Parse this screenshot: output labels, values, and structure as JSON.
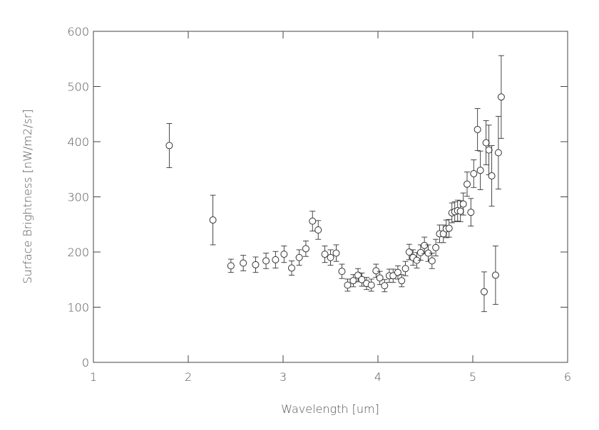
{
  "chart_data": {
    "type": "scatter",
    "xlabel": "Wavelength [um]",
    "ylabel": "Surface Brightness [nW/m2/sr]",
    "xlim": [
      1,
      6
    ],
    "ylim": [
      0,
      600
    ],
    "xticks": [
      1,
      2,
      3,
      4,
      5,
      6
    ],
    "yticks": [
      0,
      100,
      200,
      300,
      400,
      500,
      600
    ],
    "color": "#333333",
    "x": [
      1.8,
      2.26,
      2.45,
      2.58,
      2.71,
      2.82,
      2.92,
      3.01,
      3.09,
      3.17,
      3.24,
      3.31,
      3.37,
      3.44,
      3.5,
      3.56,
      3.62,
      3.68,
      3.74,
      3.79,
      3.83,
      3.88,
      3.93,
      3.98,
      4.02,
      4.07,
      4.12,
      4.16,
      4.21,
      4.25,
      4.29,
      4.33,
      4.37,
      4.41,
      4.45,
      4.49,
      4.53,
      4.57,
      4.61,
      4.65,
      4.69,
      4.72,
      4.75,
      4.78,
      4.81,
      4.84,
      4.87,
      4.9,
      4.94,
      4.98,
      5.01,
      5.05,
      5.08,
      5.12,
      5.14,
      5.17,
      5.2,
      5.24,
      5.27,
      5.3
    ],
    "values": [
      393,
      258,
      175,
      180,
      177,
      184,
      186,
      196,
      171,
      190,
      206,
      256,
      240,
      196,
      190,
      198,
      165,
      140,
      148,
      158,
      150,
      143,
      140,
      166,
      153,
      139,
      157,
      157,
      163,
      148,
      170,
      200,
      190,
      185,
      199,
      212,
      198,
      184,
      208,
      233,
      233,
      242,
      243,
      271,
      273,
      275,
      274,
      287,
      323,
      272,
      342,
      422,
      348,
      128,
      398,
      385,
      338,
      158,
      380,
      481
    ],
    "errors": [
      40,
      45,
      12,
      14,
      14,
      14,
      15,
      15,
      13,
      14,
      14,
      18,
      17,
      15,
      14,
      15,
      13,
      11,
      11,
      12,
      12,
      11,
      11,
      12,
      12,
      11,
      12,
      12,
      12,
      11,
      13,
      14,
      14,
      14,
      14,
      15,
      15,
      14,
      15,
      16,
      16,
      16,
      16,
      18,
      18,
      19,
      19,
      20,
      22,
      25,
      25,
      38,
      35,
      36,
      40,
      45,
      55,
      53,
      66,
      75
    ]
  }
}
